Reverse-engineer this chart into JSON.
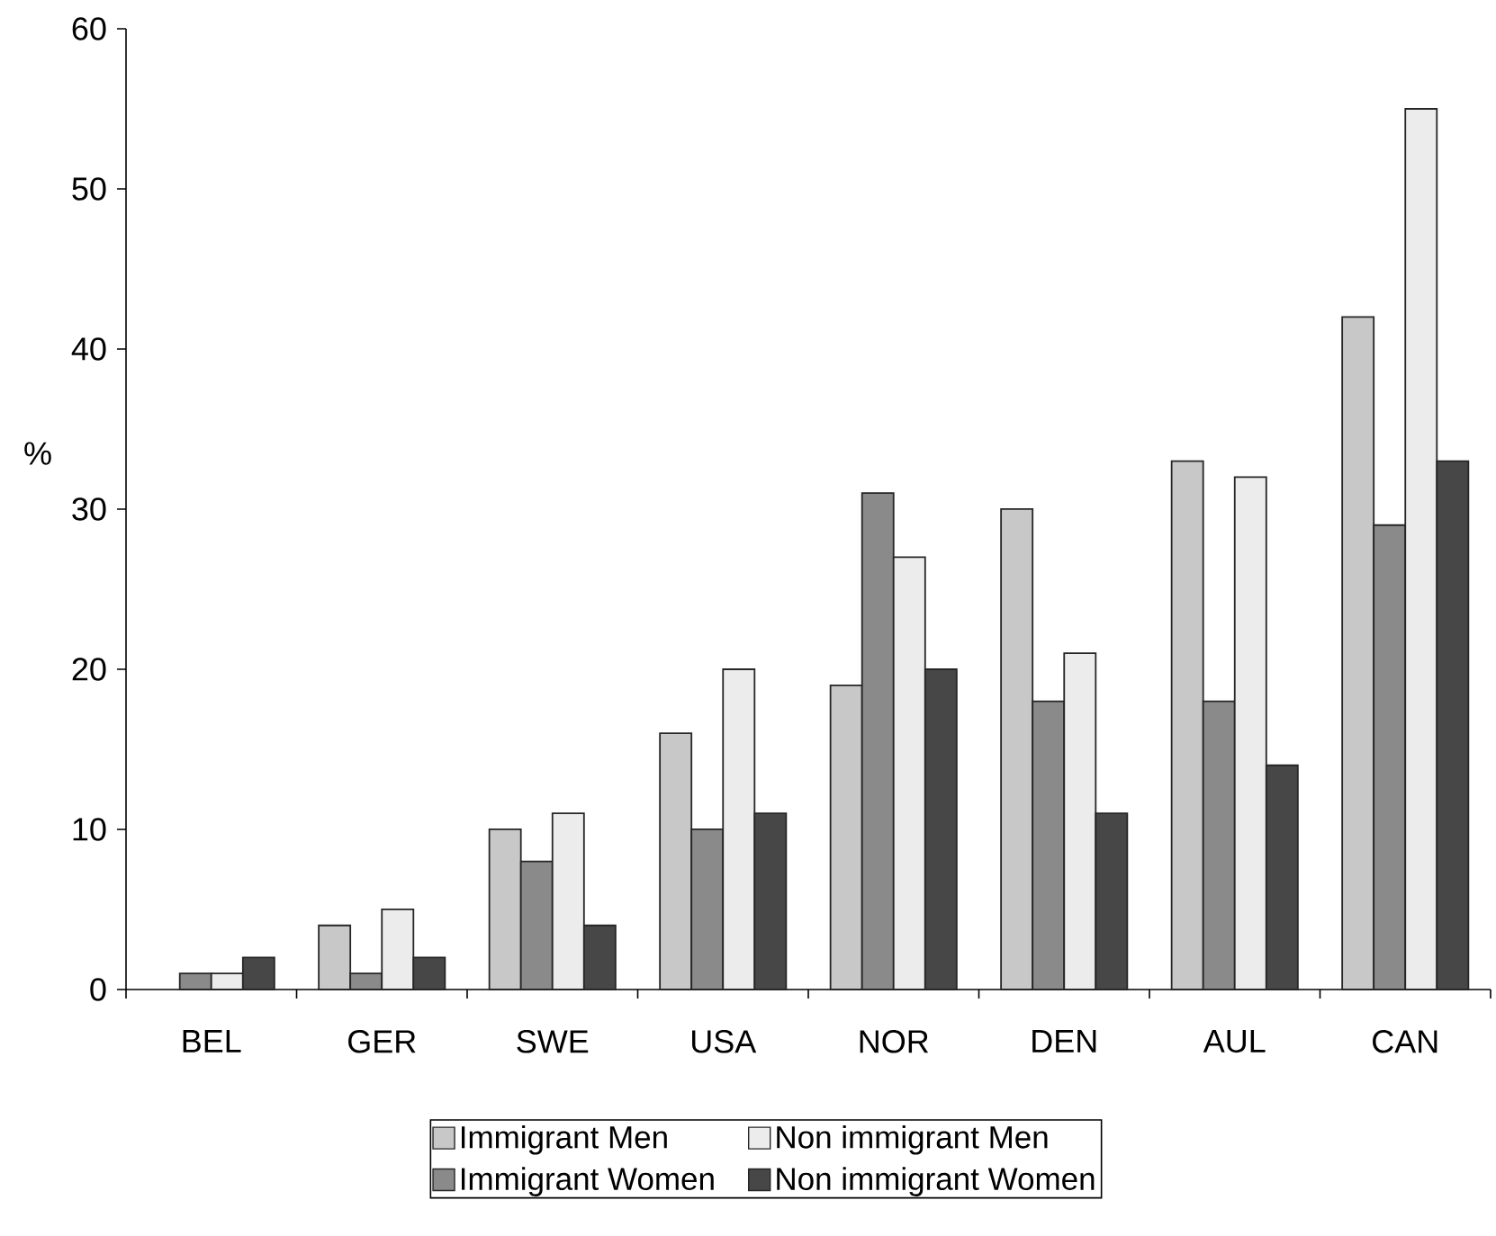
{
  "chart_data": {
    "type": "bar",
    "ylabel": "%",
    "categories": [
      "BEL",
      "GER",
      "SWE",
      "USA",
      "NOR",
      "DEN",
      "AUL",
      "CAN"
    ],
    "series": [
      {
        "name": "Immigrant Men",
        "color": "#c8c8c8",
        "values": [
          null,
          4,
          10,
          16,
          19,
          30,
          33,
          42
        ]
      },
      {
        "name": "Immigrant Women",
        "color": "#8a8a8a",
        "values": [
          1,
          1,
          8,
          10,
          31,
          18,
          18,
          29
        ]
      },
      {
        "name": "Non immigrant Men",
        "color": "#ececec",
        "values": [
          1,
          5,
          11,
          20,
          27,
          21,
          32,
          55
        ]
      },
      {
        "name": "Non immigrant Women",
        "color": "#474747",
        "values": [
          2,
          2,
          4,
          11,
          20,
          11,
          14,
          33
        ]
      }
    ],
    "ylim": [
      0,
      60
    ],
    "yticks": [
      0,
      10,
      20,
      30,
      40,
      50,
      60
    ],
    "legend": "bottom"
  }
}
